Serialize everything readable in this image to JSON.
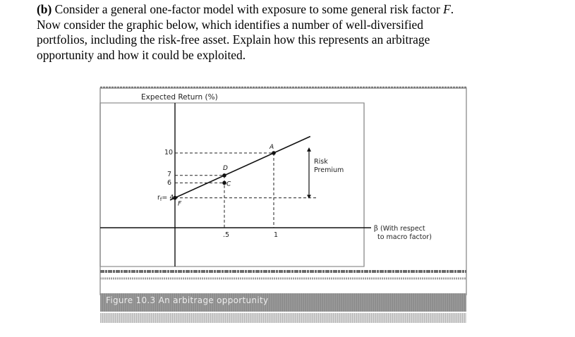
{
  "question": {
    "label": "(b)",
    "line1_text": " Consider a general one-factor model with exposure to some general risk factor ",
    "factor_symbol": "F",
    "line1_end": ".",
    "line2": "Now consider the graphic below, which identifies a number of well-diversified",
    "line3": "portfolios, including the risk-free asset. Explain how this represents an arbitrage",
    "line4": "opportunity and how it could be exploited."
  },
  "figure": {
    "y_axis_title": "Expected Return (%)",
    "y_ticks": [
      "10",
      "7",
      "6"
    ],
    "rf_label": "r",
    "rf_subscript": "f",
    "rf_value": "= 4",
    "x_ticks": [
      ".5",
      "1"
    ],
    "point_labels": [
      "A",
      "D",
      "C",
      "F"
    ],
    "risk_premium_line1": "Risk",
    "risk_premium_line2": "Premium",
    "x_axis_symbol": "β",
    "x_axis_line1": "(With respect",
    "x_axis_line2": "to macro factor)",
    "caption": "Figure 10.3  An arbitrage opportunity"
  },
  "chart_data": {
    "type": "scatter",
    "title": "",
    "ylabel": "Expected Return (%)",
    "xlabel": "β (With respect to macro factor)",
    "xlim": [
      0,
      1.4
    ],
    "ylim": [
      0,
      12
    ],
    "points": [
      {
        "label": "F",
        "x": 0,
        "y": 4
      },
      {
        "label": "C",
        "x": 0.5,
        "y": 6
      },
      {
        "label": "D",
        "x": 0.5,
        "y": 7
      },
      {
        "label": "A",
        "x": 1,
        "y": 10
      }
    ],
    "security_market_line": {
      "intercept": 4,
      "slope": 6
    },
    "annotations": [
      "Risk Premium"
    ]
  }
}
